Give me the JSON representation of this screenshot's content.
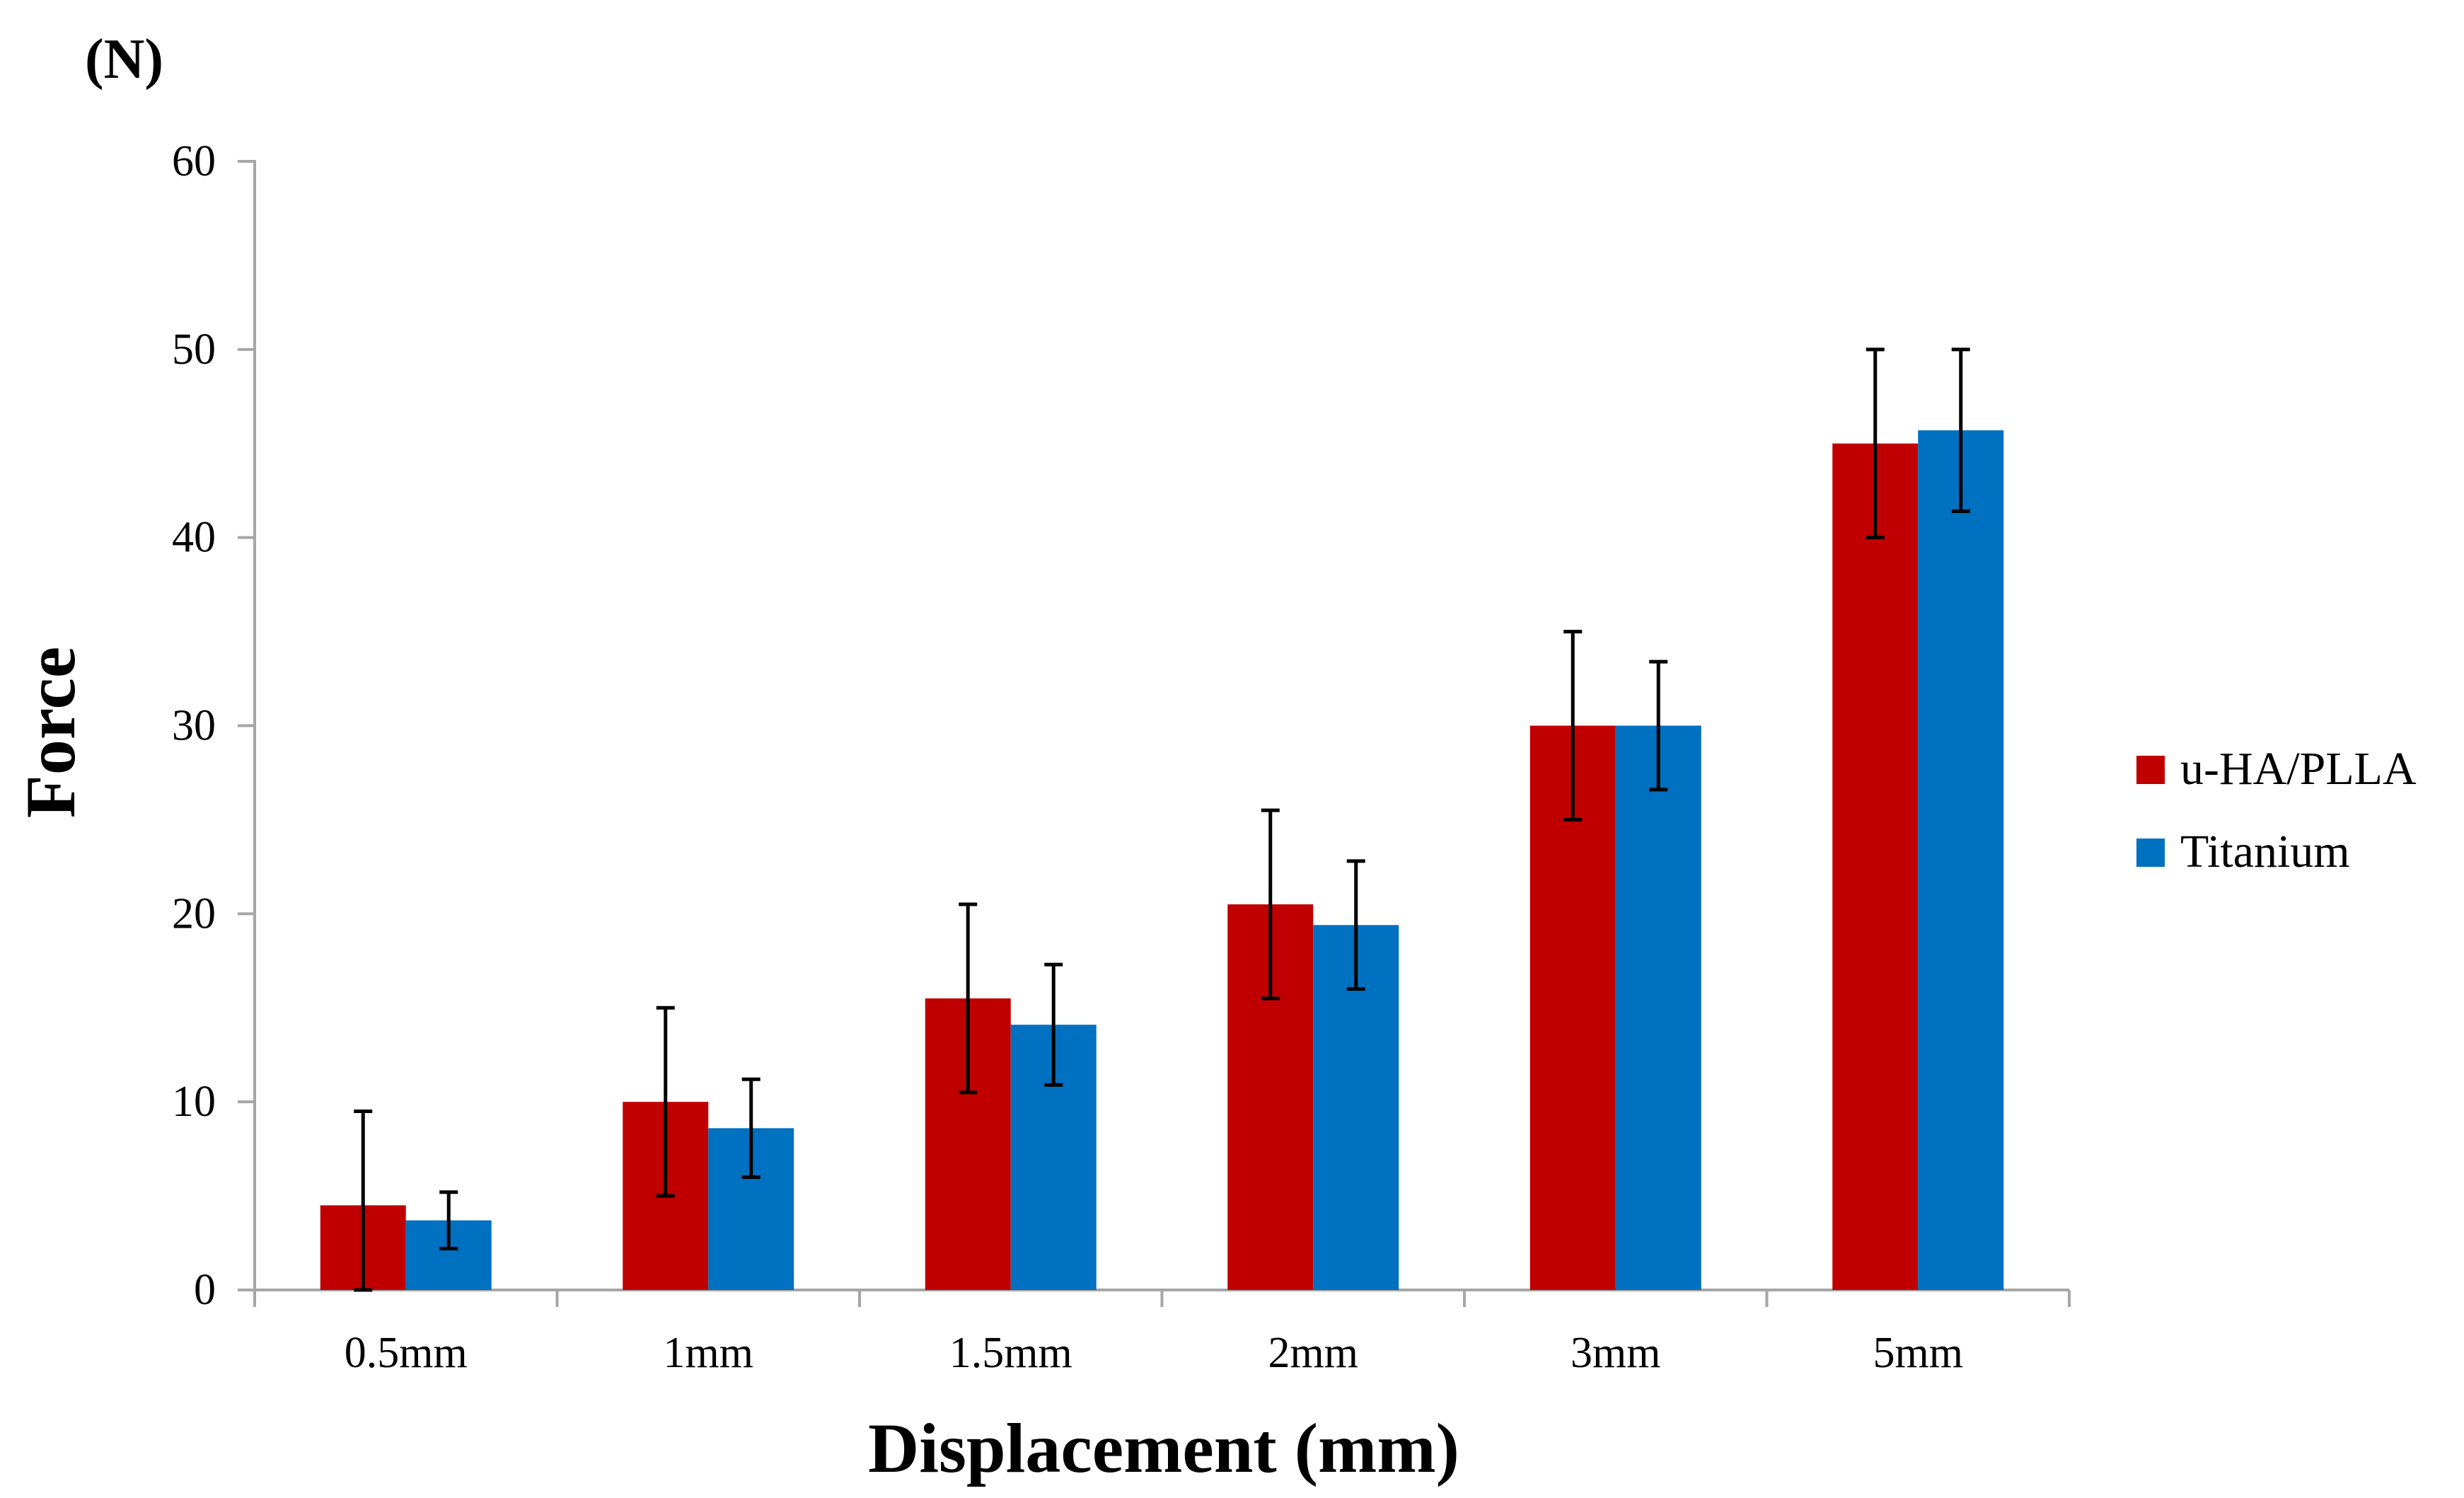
{
  "chart_data": {
    "type": "bar",
    "title": "",
    "xlabel": "Displacement (mm)",
    "ylabel": "Force",
    "y_unit": "(N)",
    "categories": [
      "0.5mm",
      "1mm",
      "1.5mm",
      "2mm",
      "3mm",
      "5mm"
    ],
    "ylim": [
      0,
      60
    ],
    "yticks": [
      0,
      10,
      20,
      30,
      40,
      50,
      60
    ],
    "grid": false,
    "legend_position": "right",
    "series": [
      {
        "name": "u-HA/PLLA",
        "color": "#C00000",
        "values": [
          4.5,
          10,
          15.5,
          20.5,
          30,
          45
        ],
        "errors": [
          5,
          5,
          5,
          5,
          5,
          5
        ]
      },
      {
        "name": "Titanium",
        "color": "#0070C0",
        "values": [
          3.7,
          8.6,
          14.1,
          19.4,
          30,
          45.7
        ],
        "errors": [
          1.5,
          2.6,
          3.2,
          3.4,
          3.4,
          4.3
        ]
      }
    ]
  }
}
